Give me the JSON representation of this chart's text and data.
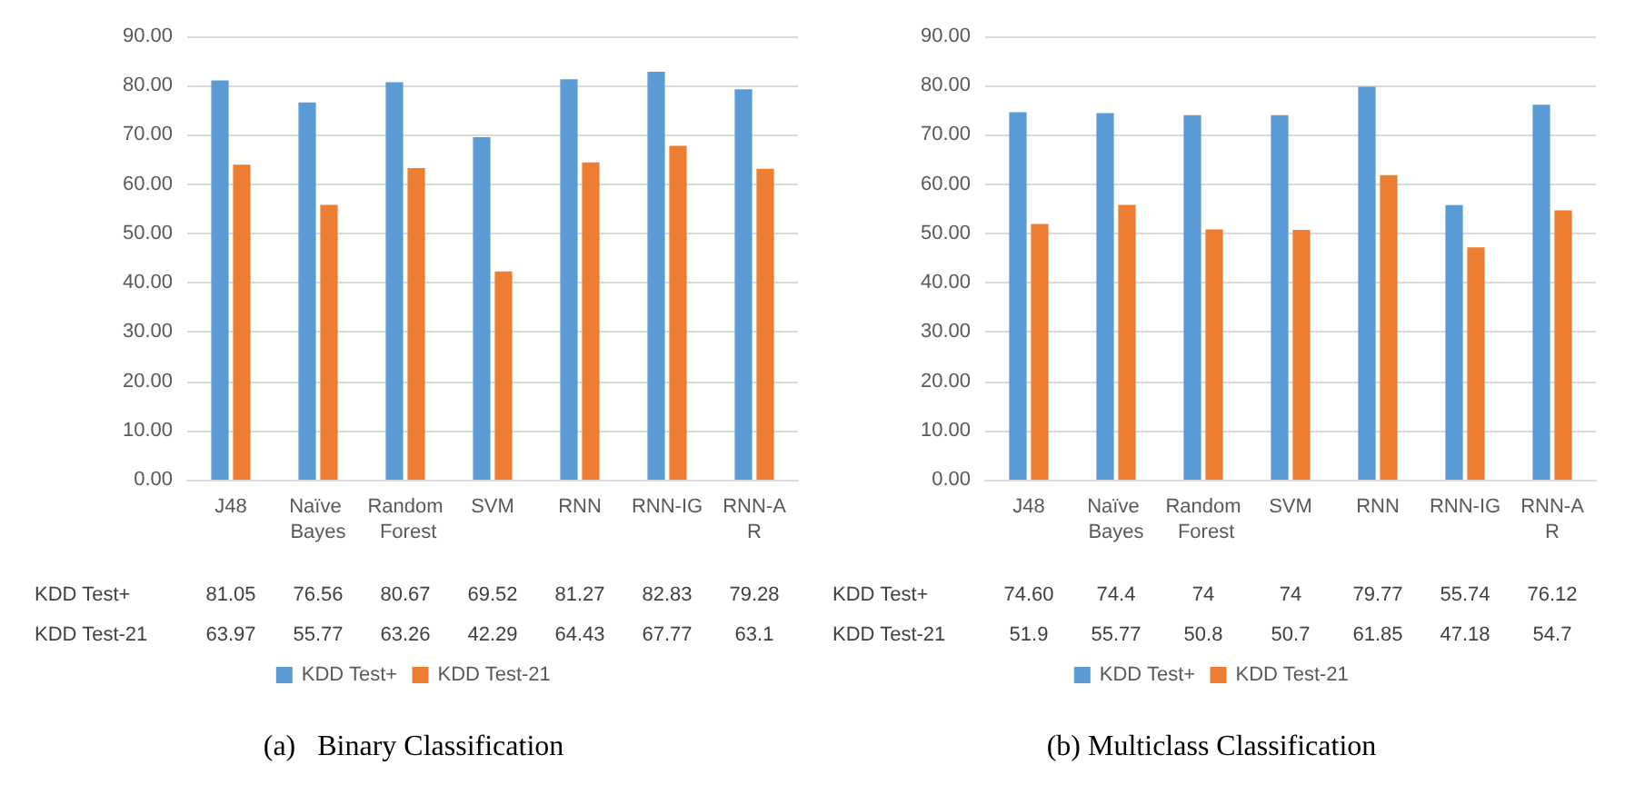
{
  "chart_data": [
    {
      "type": "bar",
      "title": "(a)   Binary Classification",
      "categories": [
        "J48",
        "Naïve Bayes",
        "Random Forest",
        "SVM",
        "RNN",
        "RNN-IG",
        "RNN-AR"
      ],
      "series": [
        {
          "name": "KDD Test+",
          "color": "#5b9bd5",
          "values": [
            81.05,
            76.56,
            80.67,
            69.52,
            81.27,
            82.83,
            79.28
          ]
        },
        {
          "name": "KDD Test-21",
          "color": "#ed7d31",
          "values": [
            63.97,
            55.77,
            63.26,
            42.29,
            64.43,
            67.77,
            63.1
          ]
        }
      ],
      "data_labels": true,
      "ylim": [
        0,
        90
      ],
      "yticks": [
        {
          "value": 0,
          "label": "0.00"
        },
        {
          "value": 10,
          "label": "10.00"
        },
        {
          "value": 20,
          "label": "20.00"
        },
        {
          "value": 30,
          "label": "30.00"
        },
        {
          "value": 40,
          "label": "40.00"
        },
        {
          "value": 50,
          "label": "50.00"
        },
        {
          "value": 60,
          "label": "60.00"
        },
        {
          "value": 70,
          "label": "70.00"
        },
        {
          "value": 80,
          "label": "80.00"
        },
        {
          "value": 90,
          "label": "90.00"
        }
      ],
      "grid": "y",
      "legend": "bottom"
    },
    {
      "type": "bar",
      "title": "(b) Multiclass Classification",
      "categories": [
        "J48",
        "Naïve Bayes",
        "Random Forest",
        "SVM",
        "RNN",
        "RNN-IG",
        "RNN-AR"
      ],
      "series": [
        {
          "name": "KDD Test+",
          "color": "#5b9bd5",
          "values": [
            74.6,
            74.4,
            74,
            74,
            79.77,
            55.74,
            76.12
          ],
          "value_labels": [
            "74.60",
            "74.4",
            "74",
            "74",
            "79.77",
            "55.74",
            "76.12"
          ]
        },
        {
          "name": "KDD Test-21",
          "color": "#ed7d31",
          "values": [
            51.9,
            55.77,
            50.8,
            50.7,
            61.85,
            47.18,
            54.7
          ],
          "value_labels": [
            "51.9",
            "55.77",
            "50.8",
            "50.7",
            "61.85",
            "47.18",
            "54.7"
          ]
        }
      ],
      "ylim": [
        0,
        90
      ],
      "yticks": [
        {
          "value": 0,
          "label": "0.00"
        },
        {
          "value": 10,
          "label": "10.00"
        },
        {
          "value": 20,
          "label": "20.00"
        },
        {
          "value": 30,
          "label": "30.00"
        },
        {
          "value": 40,
          "label": "40.00"
        },
        {
          "value": 50,
          "label": "50.00"
        },
        {
          "value": 60,
          "label": "60.00"
        },
        {
          "value": 70,
          "label": "70.00"
        },
        {
          "value": 80,
          "label": "80.00"
        },
        {
          "value": 90,
          "label": "90.00"
        }
      ],
      "grid": "y",
      "legend": "bottom"
    }
  ]
}
